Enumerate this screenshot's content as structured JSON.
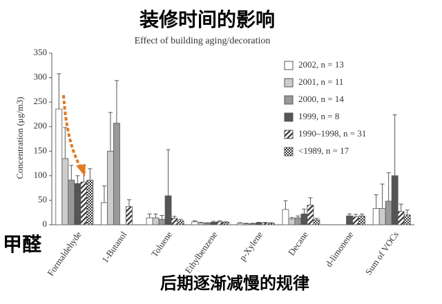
{
  "chart_data": {
    "type": "bar",
    "overlay_title": "装修时间的影响",
    "title": "Effect of building aging/decoration",
    "ylabel": "Concentration (μg/m3)",
    "overlay_left": "甲醛",
    "overlay_bottom": "后期逐渐减慢的规律",
    "categories": [
      "Formaldehyde",
      "1-Butanol",
      "Toluene",
      "Ethylbenzene",
      "p-Xylene",
      "Decane",
      "d-limonene",
      "Sum of VOCs"
    ],
    "series": [
      {
        "name": "2002, n = 13",
        "color": "#ffffff",
        "pattern": "solid",
        "values": [
          236,
          45,
          14,
          6,
          3,
          31,
          null,
          33
        ],
        "errors": [
          72,
          34,
          8,
          2,
          1,
          18,
          null,
          28
        ]
      },
      {
        "name": "2001, n = 11",
        "color": "#cccccc",
        "pattern": "solid",
        "values": [
          135,
          150,
          14,
          4,
          2,
          12,
          null,
          33
        ],
        "errors": [
          63,
          79,
          8,
          1,
          1,
          3,
          null,
          50
        ]
      },
      {
        "name": "2000, n = 14",
        "color": "#999999",
        "pattern": "solid",
        "values": [
          91,
          207,
          11,
          3,
          2,
          14,
          null,
          48
        ],
        "errors": [
          30,
          87,
          8,
          1,
          1,
          4,
          null,
          58
        ]
      },
      {
        "name": "1999, n = 8",
        "color": "#555555",
        "pattern": "solid",
        "values": [
          84,
          null,
          59,
          5,
          4,
          22,
          18,
          100
        ],
        "errors": [
          16,
          null,
          94,
          2,
          1,
          10,
          4,
          124
        ]
      },
      {
        "name": "1990–1998, n = 31",
        "color": "#333333",
        "pattern": "hatch",
        "values": [
          87,
          37,
          13,
          6,
          4,
          40,
          16,
          27
        ],
        "errors": [
          20,
          14,
          4,
          2,
          1,
          15,
          5,
          15
        ]
      },
      {
        "name": "<1989, n = 17",
        "color": "#333333",
        "pattern": "dots",
        "values": [
          91,
          null,
          8,
          5,
          3,
          10,
          18,
          20
        ],
        "errors": [
          23,
          null,
          3,
          1,
          1,
          3,
          4,
          10
        ]
      }
    ],
    "ylim": [
      0,
      350
    ],
    "yticks": [
      0,
      50,
      100,
      150,
      200,
      250,
      300,
      350
    ]
  }
}
